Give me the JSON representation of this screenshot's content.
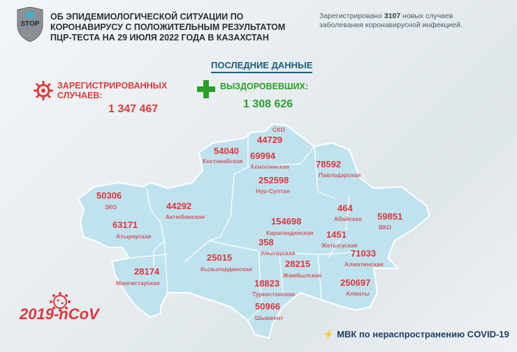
{
  "header": {
    "logo_text": "STOP",
    "title_lines": [
      "ОБ ЭПИДЕМИОЛОГИЧЕСКОЙ СИТУАЦИИ ПО",
      "КОРОНАВИРУСУ С ПОЛОЖИТЕЛЬНЫМ РЕЗУЛЬТАТОМ",
      "ПЦР-ТЕСТА НА 29 ИЮЛЯ 2022 ГОДА В КАЗАХСТАН"
    ],
    "note_prefix": "Зарегистрировано",
    "note_number": "3107",
    "note_suffix": "новых случаев",
    "note_line2": "заболевания коронавирусной инфекцией."
  },
  "latest_heading": "ПОСЛЕДНИЕ ДАННЫЕ",
  "registered": {
    "label_line1": "ЗАРЕГИСТРИРОВАННЫХ",
    "label_line2": "СЛУЧАЕВ:",
    "value": "1 347 467",
    "icon": "virus-icon",
    "color": "#e03a3a"
  },
  "recovered": {
    "label": "ВЫЗДОРОВЕВШИХ:",
    "value": "1 308 626",
    "icon": "plus-icon",
    "color": "#2a9e2a"
  },
  "regions": [
    {
      "name": "СКО",
      "value": "44729"
    },
    {
      "name": "Костанайская",
      "value": "54040"
    },
    {
      "name": "Акмолинская",
      "value": "69994"
    },
    {
      "name": "Павлодарская",
      "value": "78592"
    },
    {
      "name": "Нур-Султан",
      "value": "252598"
    },
    {
      "name": "ЗКО",
      "value": "50306"
    },
    {
      "name": "Актюбинская",
      "value": "44292"
    },
    {
      "name": "Атырауская",
      "value": "63171"
    },
    {
      "name": "Карагандинская",
      "value": "154698"
    },
    {
      "name": "Абайская",
      "value": "464"
    },
    {
      "name": "ВКО",
      "value": "59851"
    },
    {
      "name": "Улытауская",
      "value": "358"
    },
    {
      "name": "Жетысуская",
      "value": "1451"
    },
    {
      "name": "Кызылординская",
      "value": "25015"
    },
    {
      "name": "Алматинская",
      "value": "71033"
    },
    {
      "name": "Жамбылская",
      "value": "28215"
    },
    {
      "name": "Мангистауская",
      "value": "28174"
    },
    {
      "name": "Туркестанская",
      "value": "18823"
    },
    {
      "name": "Алматы",
      "value": "250697"
    },
    {
      "name": "Шымкент",
      "value": "50966"
    }
  ],
  "map_color": "#bfe3ee",
  "footer": {
    "ncov": "2019-nCoV",
    "mvk": "МВК по нераспространению COVID-19"
  }
}
